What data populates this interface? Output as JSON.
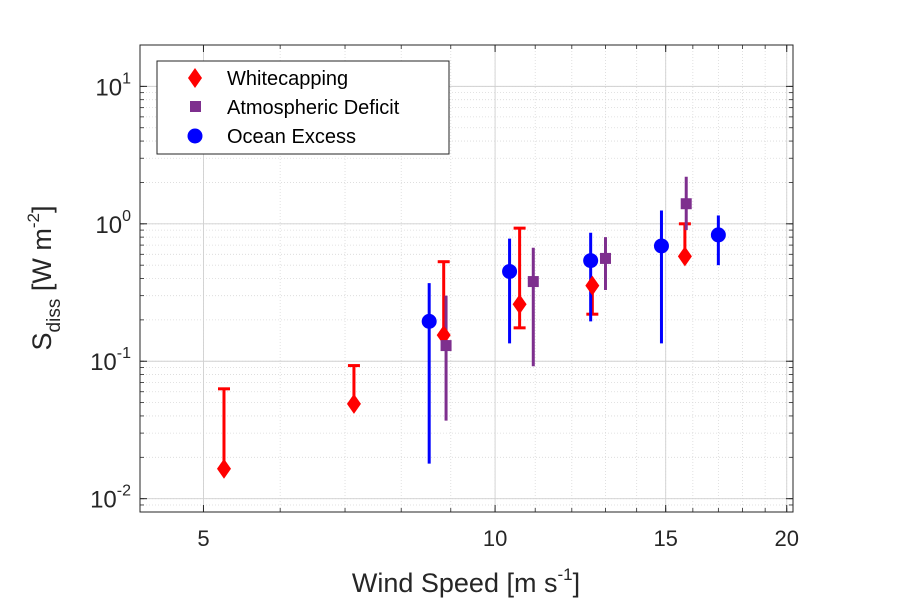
{
  "chart_data": {
    "type": "scatter",
    "xscale": "log",
    "yscale": "log",
    "xlim": [
      4.3,
      20.3
    ],
    "ylim": [
      0.008,
      20
    ],
    "grid": true,
    "legend_position": "top-left",
    "x_ticks": [
      {
        "value": 5,
        "label": "5"
      },
      {
        "value": 10,
        "label": "10"
      },
      {
        "value": 15,
        "label": "15"
      },
      {
        "value": 20,
        "label": "20"
      }
    ],
    "y_ticks": [
      {
        "value": 0.01,
        "base": "10",
        "exp": "-2"
      },
      {
        "value": 0.1,
        "base": "10",
        "exp": "-1"
      },
      {
        "value": 1,
        "base": "10",
        "exp": "0"
      },
      {
        "value": 10,
        "base": "10",
        "exp": "1"
      }
    ],
    "xlabel": {
      "text": "Wind Speed [m s",
      "sup": "-1",
      "end": "]"
    },
    "ylabel": {
      "main": "S",
      "sub": "diss",
      "rest": " [W m",
      "sup": "-2",
      "end": "]"
    },
    "series": [
      {
        "name": "Whitecapping",
        "marker": "diamond",
        "color": "#ff0000",
        "points": [
          {
            "x": 5.25,
            "y": 0.0165,
            "lo": 0.0165,
            "hi": 0.063
          },
          {
            "x": 7.15,
            "y": 0.049,
            "lo": 0.049,
            "hi": 0.093
          },
          {
            "x": 8.85,
            "y": 0.155,
            "lo": 0.155,
            "hi": 0.53
          },
          {
            "x": 10.6,
            "y": 0.26,
            "lo": 0.175,
            "hi": 0.93
          },
          {
            "x": 12.6,
            "y": 0.355,
            "lo": 0.22,
            "hi": 0.355
          },
          {
            "x": 15.7,
            "y": 0.58,
            "lo": 0.58,
            "hi": 1.0
          }
        ]
      },
      {
        "name": "Atmospheric Deficit",
        "marker": "square",
        "color": "#7e2f8e",
        "points": [
          {
            "x": 8.9,
            "y": 0.13,
            "lo": 0.037,
            "hi": 0.3
          },
          {
            "x": 10.95,
            "y": 0.38,
            "lo": 0.092,
            "hi": 0.67
          },
          {
            "x": 13.0,
            "y": 0.56,
            "lo": 0.33,
            "hi": 0.8
          },
          {
            "x": 15.75,
            "y": 1.4,
            "lo": 0.9,
            "hi": 2.2
          }
        ]
      },
      {
        "name": "Ocean Excess",
        "marker": "circle",
        "color": "#0000ff",
        "points": [
          {
            "x": 8.55,
            "y": 0.195,
            "lo": 0.018,
            "hi": 0.37
          },
          {
            "x": 10.35,
            "y": 0.45,
            "lo": 0.135,
            "hi": 0.78
          },
          {
            "x": 12.55,
            "y": 0.54,
            "lo": 0.195,
            "hi": 0.86
          },
          {
            "x": 14.85,
            "y": 0.69,
            "lo": 0.135,
            "hi": 1.25
          },
          {
            "x": 17.0,
            "y": 0.83,
            "lo": 0.5,
            "hi": 1.15
          }
        ]
      }
    ]
  }
}
